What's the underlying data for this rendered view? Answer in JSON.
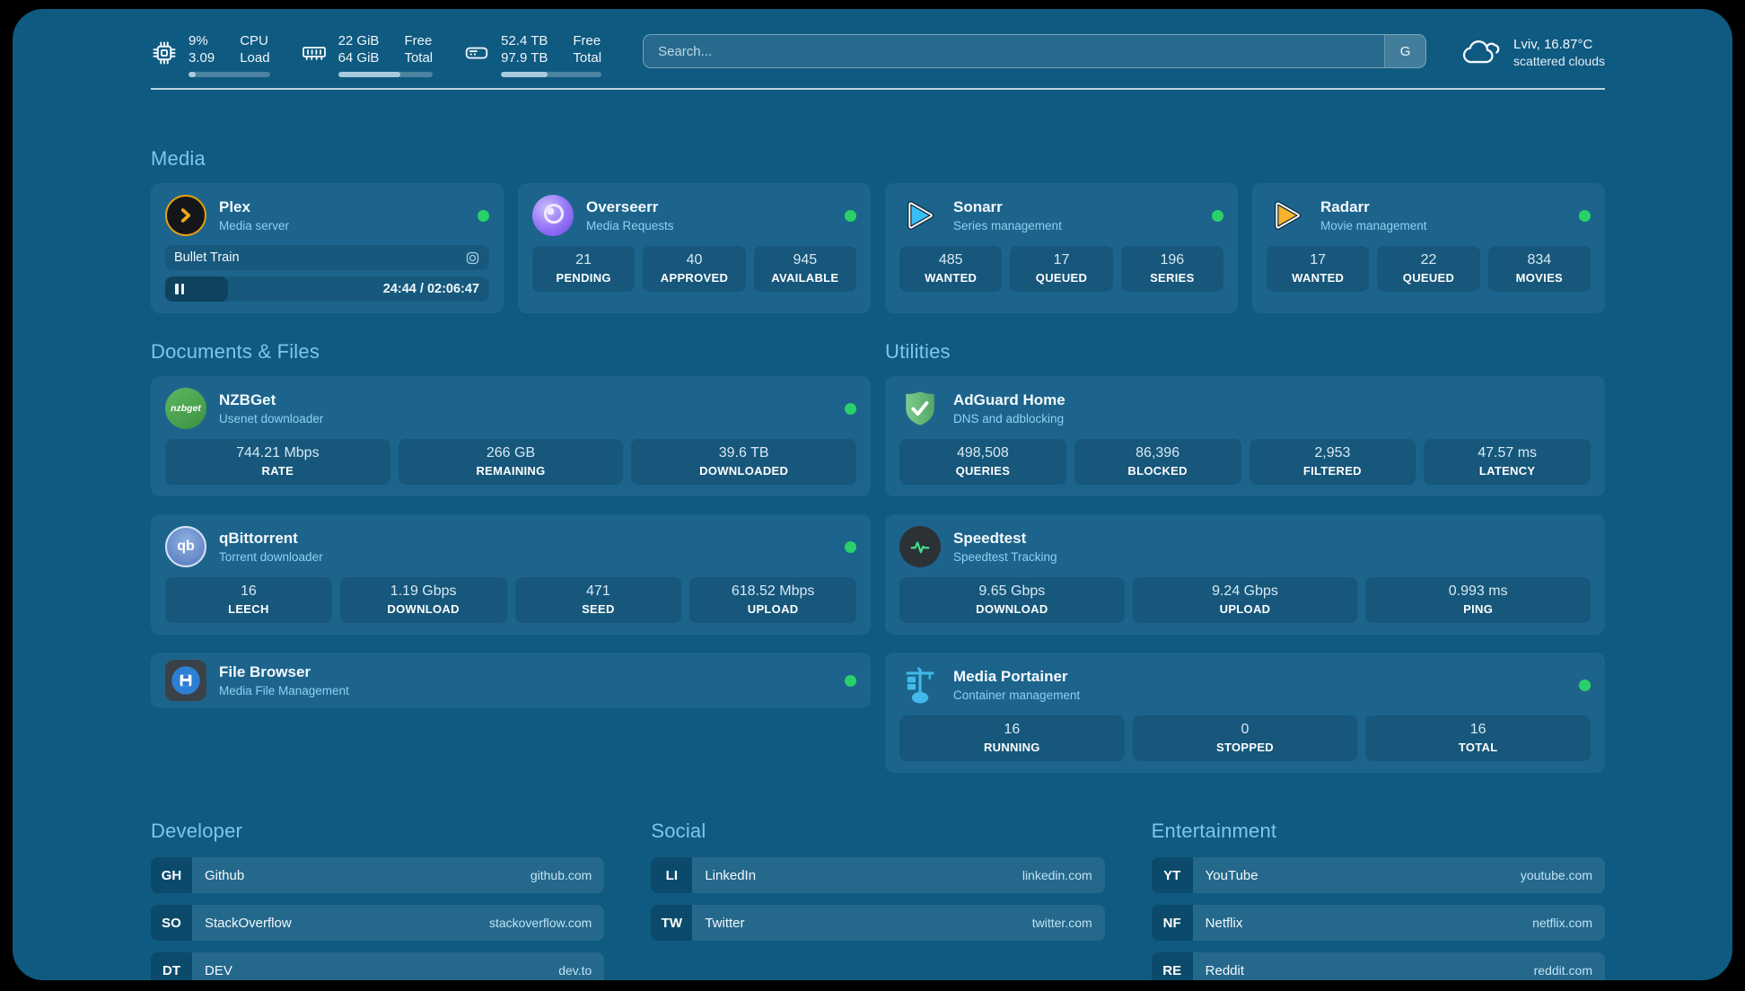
{
  "theme": {
    "page_bg": "#0f5a80",
    "card_bg": "#1c648c",
    "heading_color": "#7cc6ec",
    "subtitle_color": "#8fd0f2",
    "status_online": "#2ad168",
    "accent_plex": "#e5a00d",
    "accent_sonarr": "#38bdf8",
    "accent_radarr": "#f7b42c",
    "accent_adguard": "#68bc71",
    "accent_speedtest": "#3fdc84",
    "accent_portainer": "#41b9ea"
  },
  "topbar": {
    "cpu": {
      "line1": "9%",
      "line2": "3.09",
      "label1": "CPU",
      "label2": "Load",
      "progress": 9
    },
    "ram": {
      "line1": "22 GiB",
      "line2": "64 GiB",
      "label1": "Free",
      "label2": "Total",
      "progress": 66
    },
    "disk": {
      "line1": "52.4 TB",
      "line2": "97.9 TB",
      "label1": "Free",
      "label2": "Total",
      "progress": 46
    },
    "search": {
      "placeholder": "Search...",
      "button_label": "G"
    },
    "weather": {
      "headline": "Lviv, 16.87°C",
      "condition": "scattered clouds"
    }
  },
  "sections": {
    "media": {
      "title": "Media",
      "plex": {
        "name": "Plex",
        "subtitle": "Media server",
        "now_playing": {
          "title": "Bullet Train",
          "time": "24:44 / 02:06:47",
          "progress": 19.5
        }
      },
      "overseerr": {
        "name": "Overseerr",
        "subtitle": "Media Requests",
        "stats": [
          {
            "value": "21",
            "label": "PENDING"
          },
          {
            "value": "40",
            "label": "APPROVED"
          },
          {
            "value": "945",
            "label": "AVAILABLE"
          }
        ]
      },
      "sonarr": {
        "name": "Sonarr",
        "subtitle": "Series management",
        "stats": [
          {
            "value": "485",
            "label": "WANTED"
          },
          {
            "value": "17",
            "label": "QUEUED"
          },
          {
            "value": "196",
            "label": "SERIES"
          }
        ]
      },
      "radarr": {
        "name": "Radarr",
        "subtitle": "Movie management",
        "stats": [
          {
            "value": "17",
            "label": "WANTED"
          },
          {
            "value": "22",
            "label": "QUEUED"
          },
          {
            "value": "834",
            "label": "MOVIES"
          }
        ]
      }
    },
    "documents": {
      "title": "Documents & Files",
      "nzbget": {
        "name": "NZBGet",
        "subtitle": "Usenet downloader",
        "icon_text": "nzbget",
        "stats": [
          {
            "value": "744.21 Mbps",
            "label": "RATE"
          },
          {
            "value": "266 GB",
            "label": "REMAINING"
          },
          {
            "value": "39.6 TB",
            "label": "DOWNLOADED"
          }
        ]
      },
      "qbittorrent": {
        "name": "qBittorrent",
        "subtitle": "Torrent downloader",
        "icon_text": "qb",
        "stats": [
          {
            "value": "16",
            "label": "LEECH"
          },
          {
            "value": "1.19 Gbps",
            "label": "DOWNLOAD"
          },
          {
            "value": "471",
            "label": "SEED"
          },
          {
            "value": "618.52 Mbps",
            "label": "UPLOAD"
          }
        ]
      },
      "filebrowser": {
        "name": "File Browser",
        "subtitle": "Media File Management"
      }
    },
    "utilities": {
      "title": "Utilities",
      "adguard": {
        "name": "AdGuard Home",
        "subtitle": "DNS and adblocking",
        "stats": [
          {
            "value": "498,508",
            "label": "QUERIES"
          },
          {
            "value": "86,396",
            "label": "BLOCKED"
          },
          {
            "value": "2,953",
            "label": "FILTERED"
          },
          {
            "value": "47.57 ms",
            "label": "LATENCY"
          }
        ]
      },
      "speedtest": {
        "name": "Speedtest",
        "subtitle": "Speedtest Tracking",
        "stats": [
          {
            "value": "9.65 Gbps",
            "label": "DOWNLOAD"
          },
          {
            "value": "9.24 Gbps",
            "label": "UPLOAD"
          },
          {
            "value": "0.993 ms",
            "label": "PING"
          }
        ]
      },
      "portainer": {
        "name": "Media Portainer",
        "subtitle": "Container management",
        "stats": [
          {
            "value": "16",
            "label": "RUNNING"
          },
          {
            "value": "0",
            "label": "STOPPED"
          },
          {
            "value": "16",
            "label": "TOTAL"
          }
        ]
      }
    }
  },
  "bookmarks": {
    "developer": {
      "title": "Developer",
      "items": [
        {
          "abbr": "GH",
          "name": "Github",
          "url": "github.com"
        },
        {
          "abbr": "SO",
          "name": "StackOverflow",
          "url": "stackoverflow.com"
        },
        {
          "abbr": "DT",
          "name": "DEV",
          "url": "dev.to"
        }
      ]
    },
    "social": {
      "title": "Social",
      "items": [
        {
          "abbr": "LI",
          "name": "LinkedIn",
          "url": "linkedin.com"
        },
        {
          "abbr": "TW",
          "name": "Twitter",
          "url": "twitter.com"
        }
      ]
    },
    "entertainment": {
      "title": "Entertainment",
      "items": [
        {
          "abbr": "YT",
          "name": "YouTube",
          "url": "youtube.com"
        },
        {
          "abbr": "NF",
          "name": "Netflix",
          "url": "netflix.com"
        },
        {
          "abbr": "RE",
          "name": "Reddit",
          "url": "reddit.com"
        }
      ]
    }
  }
}
